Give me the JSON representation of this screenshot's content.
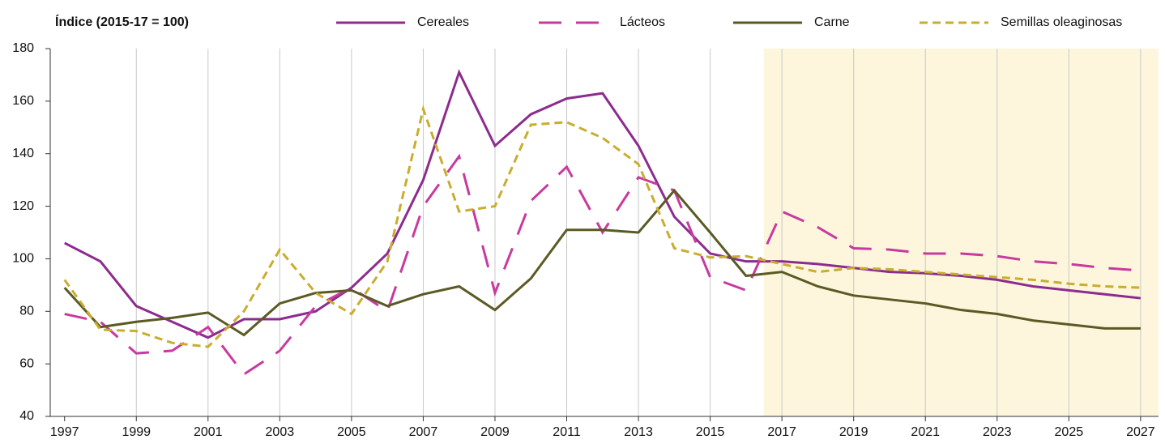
{
  "chart_data": {
    "type": "line",
    "ylabel": "Índice (2015-17 = 100)",
    "x": [
      1997,
      1998,
      1999,
      2000,
      2001,
      2002,
      2003,
      2004,
      2005,
      2006,
      2007,
      2008,
      2009,
      2010,
      2011,
      2012,
      2013,
      2014,
      2015,
      2016,
      2017,
      2018,
      2019,
      2020,
      2021,
      2022,
      2023,
      2024,
      2025,
      2026,
      2027
    ],
    "series": [
      {
        "name": "Cereales",
        "color": "#8c2c8e",
        "dash": "solid",
        "values": [
          106,
          99,
          82,
          76,
          70,
          77,
          77,
          80,
          89,
          102,
          130,
          171,
          143,
          155,
          161,
          163,
          143,
          116,
          102,
          99,
          99,
          98,
          96.5,
          95,
          94.5,
          93.5,
          92,
          89.5,
          88,
          86.5,
          85
        ]
      },
      {
        "name": "Lácteos",
        "color": "#c83a9f",
        "dash": "long",
        "values": [
          79,
          76,
          64,
          65,
          74,
          56,
          65,
          82,
          89,
          80,
          120,
          139,
          87,
          122,
          135,
          110,
          131,
          126,
          93,
          88,
          118,
          112,
          104,
          103.5,
          102,
          102,
          101,
          99,
          98,
          96.5,
          95.5
        ]
      },
      {
        "name": "Carne",
        "color": "#5b5a24",
        "dash": "solid",
        "values": [
          89,
          74,
          76,
          77.5,
          79.5,
          71,
          83,
          87,
          88,
          82,
          86.5,
          89.5,
          80.5,
          92.5,
          111,
          111,
          110,
          126,
          110,
          93.5,
          95,
          89.5,
          86,
          84.5,
          83,
          80.5,
          79,
          76.5,
          75,
          73.5,
          73.5
        ]
      },
      {
        "name": "Semillas oleaginosas",
        "color": "#c9ad2e",
        "dash": "short",
        "values": [
          92,
          73,
          72.5,
          68,
          66.5,
          80,
          103.5,
          87,
          79,
          99,
          157,
          118,
          120,
          151,
          152,
          146,
          136,
          104,
          100.5,
          101,
          98,
          95,
          96.5,
          96,
          95,
          94,
          93,
          92,
          90.5,
          89.5,
          89
        ]
      }
    ],
    "xlim": [
      1996.6,
      2027.5
    ],
    "xticks": [
      1997,
      1999,
      2001,
      2003,
      2005,
      2007,
      2009,
      2011,
      2013,
      2015,
      2017,
      2019,
      2021,
      2023,
      2025,
      2027
    ],
    "ylim": [
      40,
      180
    ],
    "yticks": [
      40,
      60,
      80,
      100,
      120,
      140,
      160,
      180
    ],
    "shaded_xrange": [
      2016.5,
      2027.5
    ],
    "grid": "x"
  }
}
